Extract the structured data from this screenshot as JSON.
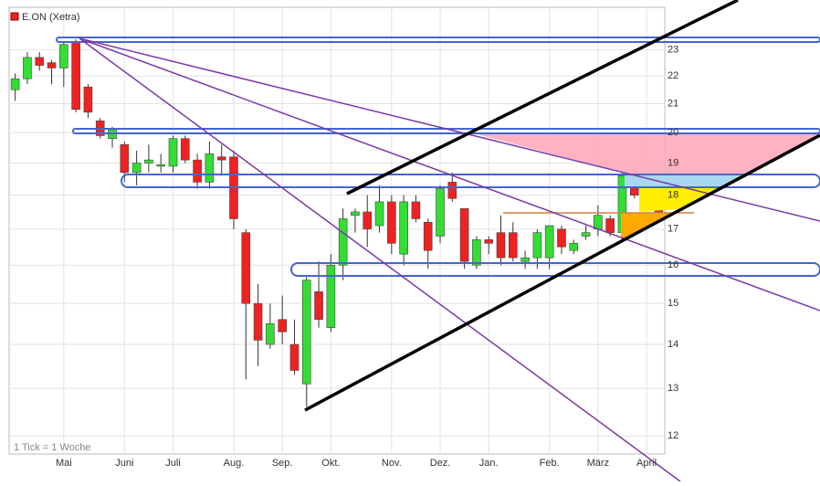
{
  "chart_data": {
    "type": "candlestick",
    "title": "E.ON (Xetra)",
    "note": "1 Tick = 1 Woche",
    "categories": [
      null,
      null,
      null,
      null,
      "Mai",
      null,
      null,
      null,
      null,
      "Juni",
      null,
      null,
      null,
      "Juli",
      null,
      null,
      null,
      null,
      "Aug.",
      null,
      null,
      null,
      "Sep.",
      null,
      null,
      null,
      "Okt.",
      null,
      null,
      null,
      null,
      "Nov.",
      null,
      null,
      null,
      "Dez.",
      null,
      null,
      null,
      "Jan.",
      null,
      null,
      null,
      null,
      "Feb.",
      null,
      null,
      null,
      "März",
      null,
      null,
      null,
      "April",
      null
    ],
    "open": [
      21.5,
      21.9,
      22.7,
      22.5,
      22.3,
      23.3,
      21.6,
      20.4,
      19.8,
      19.6,
      18.7,
      19.0,
      18.9,
      18.9,
      19.8,
      19.1,
      18.4,
      19.2,
      19.2,
      16.9,
      15.0,
      14.0,
      14.6,
      14.0,
      13.1,
      15.3,
      14.4,
      16.0,
      17.4,
      17.5,
      17.1,
      17.8,
      16.3,
      17.8,
      17.2,
      16.8,
      18.4,
      17.6,
      16.0,
      16.7,
      16.9,
      16.9,
      16.1,
      16.2,
      16.2,
      17.0,
      16.4,
      16.8,
      17.0,
      17.3,
      16.9,
      18.6,
      18.1,
      18.2
    ],
    "high": [
      22.1,
      22.9,
      22.9,
      22.6,
      23.3,
      23.4,
      21.7,
      20.5,
      20.2,
      19.7,
      19.4,
      19.6,
      19.3,
      19.9,
      19.9,
      19.3,
      19.7,
      19.6,
      19.4,
      17.0,
      15.5,
      15.0,
      15.2,
      14.6,
      15.7,
      16.1,
      16.3,
      17.6,
      17.6,
      18.0,
      18.3,
      18.0,
      18.0,
      18.0,
      17.3,
      18.3,
      18.7,
      17.6,
      16.8,
      16.8,
      17.4,
      17.2,
      16.4,
      17.0,
      17.1,
      17.1,
      16.7,
      17.1,
      17.7,
      17.4,
      18.7,
      18.8,
      18.3,
      18.3
    ],
    "low": [
      21.1,
      21.7,
      22.2,
      21.7,
      21.6,
      20.7,
      20.5,
      19.8,
      19.5,
      18.4,
      18.3,
      18.7,
      18.7,
      18.7,
      19.0,
      18.2,
      18.2,
      18.6,
      17.0,
      13.2,
      13.5,
      13.9,
      14.0,
      13.3,
      12.6,
      14.4,
      14.3,
      15.6,
      16.9,
      16.5,
      16.9,
      16.3,
      16.0,
      17.2,
      15.9,
      16.6,
      17.8,
      15.9,
      15.9,
      16.3,
      16.0,
      16.1,
      15.9,
      15.9,
      15.9,
      16.3,
      16.3,
      16.7,
      16.8,
      16.8,
      16.7,
      17.9,
      17.7,
      17.4
    ],
    "close": [
      21.9,
      22.7,
      22.4,
      22.3,
      23.2,
      20.8,
      20.7,
      19.9,
      20.1,
      18.7,
      19.0,
      19.1,
      18.95,
      19.8,
      19.1,
      18.4,
      19.3,
      19.1,
      17.3,
      15.0,
      14.1,
      14.5,
      14.3,
      13.4,
      15.6,
      14.6,
      16.0,
      17.3,
      17.5,
      17.0,
      17.8,
      16.6,
      17.8,
      17.3,
      16.4,
      18.2,
      17.9,
      16.1,
      16.7,
      16.6,
      16.2,
      16.2,
      16.2,
      16.9,
      17.1,
      16.5,
      16.6,
      16.9,
      17.4,
      16.9,
      18.6,
      18.0,
      18.0,
      17.5
    ],
    "up_color": "#33dd33",
    "down_color": "#ee2222",
    "ylim": [
      11.64,
      24.7
    ],
    "yticks": [
      12,
      13,
      14,
      15,
      16,
      17,
      18,
      19,
      20,
      21,
      22,
      23
    ],
    "log_scale": true,
    "grid": true
  }
}
